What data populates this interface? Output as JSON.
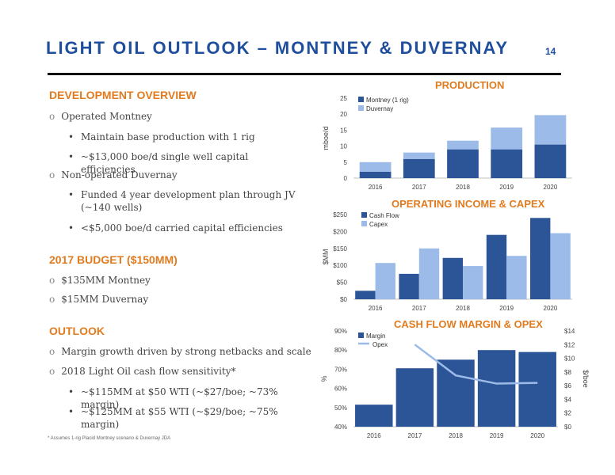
{
  "header": {
    "title": "LIGHT OIL OUTLOOK – MONTNEY & DUVERNAY",
    "page_number": "14"
  },
  "left": {
    "dev_heading": "DEVELOPMENT OVERVIEW",
    "dev_items": [
      {
        "level": 1,
        "text": "Operated Montney"
      },
      {
        "level": 2,
        "text": "Maintain base production with 1 rig"
      },
      {
        "level": 2,
        "text": "~$13,000 boe/d single well capital efficiencies"
      },
      {
        "level": 1,
        "text": "Non-operated Duvernay"
      },
      {
        "level": 2,
        "text": "Funded 4 year development plan through JV (~140 wells)"
      },
      {
        "level": 2,
        "text": "<$5,000 boe/d carried capital efficiencies"
      }
    ],
    "budget_heading": "2017 BUDGET ($150MM)",
    "budget_items": [
      {
        "level": 1,
        "text": "$135MM Montney"
      },
      {
        "level": 1,
        "text": "$15MM Duvernay"
      }
    ],
    "outlook_heading": "OUTLOOK",
    "outlook_items": [
      {
        "level": 1,
        "text": "Margin growth driven by strong netbacks and scale"
      },
      {
        "level": 1,
        "text": "2018 Light Oil cash flow sensitivity*"
      },
      {
        "level": 2,
        "text": "~$115MM at $50 WTI (~$27/boe; ~73% margin)"
      },
      {
        "level": 2,
        "text": "~$125MM at $55 WTI (~$29/boe; ~75% margin)"
      }
    ],
    "footnote": "* Assumes 1-rig Placid Montney scenario & Duvernay JDA"
  },
  "colors": {
    "dark_blue": "#2c5597",
    "light_blue": "#9dbbe8",
    "orange": "#e07b1f",
    "title_blue": "#1f4e9c"
  },
  "chart_data": [
    {
      "type": "bar",
      "stacked": true,
      "title": "PRODUCTION",
      "ylabel": "mboe/d",
      "categories": [
        "2016",
        "2017",
        "2018",
        "2019",
        "2020"
      ],
      "yticks": [
        "0",
        "5",
        "10",
        "15",
        "20",
        "25"
      ],
      "ylim": [
        0,
        25
      ],
      "legend_position": "top-left",
      "series": [
        {
          "name": "Montney (1 rig)",
          "values": [
            2,
            6,
            9,
            9,
            10.5
          ],
          "color": "#2c5597"
        },
        {
          "name": "Duvernay",
          "values": [
            3,
            2,
            2.7,
            6.8,
            9.2
          ],
          "color": "#9dbbe8"
        }
      ]
    },
    {
      "type": "bar",
      "title": "OPERATING INCOME & CAPEX",
      "ylabel": "$MM",
      "categories": [
        "2016",
        "2017",
        "2018",
        "2019",
        "2020"
      ],
      "yticks": [
        "$0",
        "$50",
        "$100",
        "$150",
        "$200",
        "$250"
      ],
      "ylim": [
        0,
        250
      ],
      "legend_position": "top-left",
      "series": [
        {
          "name": "Cash Flow",
          "values": [
            25,
            75,
            122,
            190,
            240
          ],
          "color": "#2c5597"
        },
        {
          "name": "Capex",
          "values": [
            107,
            150,
            98,
            128,
            195
          ],
          "color": "#9dbbe8"
        }
      ]
    },
    {
      "type": "bar",
      "title": "CASH FLOW MARGIN & OPEX",
      "ylabel": "%",
      "y2label": "$/boe",
      "categories": [
        "2016",
        "2017",
        "2018",
        "2019",
        "2020"
      ],
      "yticks": [
        "40%",
        "50%",
        "60%",
        "70%",
        "80%",
        "90%"
      ],
      "ylim": [
        40,
        90
      ],
      "y2ticks": [
        "$0",
        "$2",
        "$4",
        "$6",
        "$8",
        "$10",
        "$12",
        "$14"
      ],
      "y2lim": [
        0,
        14
      ],
      "legend_position": "top-left",
      "series": [
        {
          "name": "Margin",
          "kind": "bar",
          "values": [
            51.5,
            70.5,
            75,
            80,
            79
          ],
          "color": "#2c5597"
        },
        {
          "name": "Opex",
          "kind": "line",
          "axis": "y2",
          "values": [
            null,
            12,
            7.5,
            6.3,
            6.4
          ],
          "color": "#9dbbe8"
        }
      ]
    }
  ]
}
